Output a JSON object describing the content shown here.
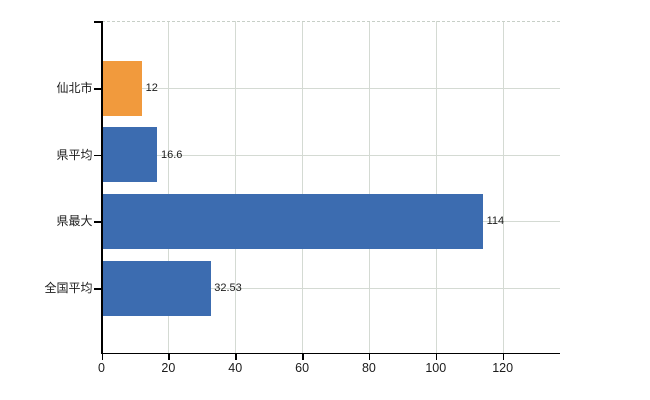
{
  "chart_data": {
    "type": "bar",
    "orientation": "horizontal",
    "title": "",
    "xlabel": "",
    "ylabel": "",
    "categories": [
      "仙北市",
      "県平均",
      "県最大",
      "全国平均"
    ],
    "values": [
      12,
      16.6,
      114,
      32.53
    ],
    "value_labels": [
      "12",
      "16.6",
      "114",
      "32.53"
    ],
    "bar_colors": [
      "#f19a3d",
      "#3c6cb0",
      "#3c6cb0",
      "#3c6cb0"
    ],
    "xlim": [
      0,
      137
    ],
    "xticks": [
      0,
      20,
      40,
      60,
      80,
      100,
      120
    ],
    "grid": true,
    "legend": false,
    "colors": {
      "highlight_bar": "#f19a3d",
      "default_bar": "#3c6cb0",
      "axis": "#000000",
      "gridline": "#d4dad3",
      "text": "#1c1c1c"
    }
  }
}
